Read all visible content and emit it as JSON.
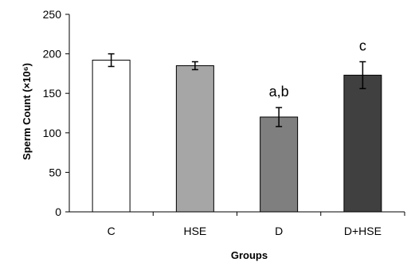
{
  "chart_data": {
    "type": "bar",
    "title": "",
    "xlabel": "Groups",
    "ylabel": "Sperm Count (×10⁶)",
    "ylim": [
      0,
      250
    ],
    "yticks": [
      0,
      50,
      100,
      150,
      200,
      250
    ],
    "categories": [
      "C",
      "HSE",
      "D",
      "D+HSE"
    ],
    "values": [
      192,
      185,
      120,
      173
    ],
    "errors": [
      8,
      5,
      12,
      17
    ],
    "annotations": [
      "",
      "",
      "a,b",
      "c"
    ],
    "colors": [
      "#ffffff",
      "#a6a6a6",
      "#7f7f7f",
      "#404040"
    ],
    "bar_edge_color": "#000000",
    "grid": false,
    "legend": "none"
  }
}
